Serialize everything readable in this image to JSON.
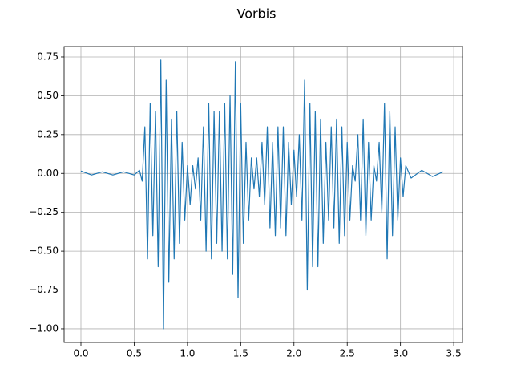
{
  "chart_data": {
    "type": "line",
    "title": "Vorbis",
    "x": [
      0,
      0.1,
      0.2,
      0.3,
      0.4,
      0.5,
      0.55,
      0.575,
      0.6,
      0.625,
      0.65,
      0.675,
      0.7,
      0.725,
      0.75,
      0.775,
      0.8,
      0.825,
      0.85,
      0.875,
      0.9,
      0.925,
      0.95,
      0.975,
      1.0,
      1.025,
      1.05,
      1.075,
      1.1,
      1.125,
      1.15,
      1.175,
      1.2,
      1.225,
      1.25,
      1.275,
      1.3,
      1.325,
      1.35,
      1.375,
      1.4,
      1.425,
      1.45,
      1.475,
      1.5,
      1.525,
      1.55,
      1.575,
      1.6,
      1.625,
      1.65,
      1.675,
      1.7,
      1.725,
      1.75,
      1.775,
      1.8,
      1.825,
      1.85,
      1.875,
      1.9,
      1.925,
      1.95,
      1.975,
      2.0,
      2.025,
      2.05,
      2.075,
      2.1,
      2.125,
      2.15,
      2.175,
      2.2,
      2.225,
      2.25,
      2.275,
      2.3,
      2.325,
      2.35,
      2.375,
      2.4,
      2.425,
      2.45,
      2.475,
      2.5,
      2.525,
      2.55,
      2.575,
      2.6,
      2.625,
      2.65,
      2.675,
      2.7,
      2.725,
      2.75,
      2.775,
      2.8,
      2.825,
      2.85,
      2.875,
      2.9,
      2.925,
      2.95,
      2.975,
      3.0,
      3.025,
      3.05,
      3.1,
      3.2,
      3.3,
      3.4
    ],
    "series": [
      {
        "color": "#1f77b4",
        "values": [
          0.015,
          -0.01,
          0.01,
          -0.01,
          0.01,
          -0.01,
          0.02,
          -0.05,
          0.3,
          -0.55,
          0.45,
          -0.4,
          0.4,
          -0.6,
          0.73,
          -1.0,
          0.6,
          -0.7,
          0.35,
          -0.55,
          0.4,
          -0.45,
          0.2,
          -0.3,
          0.05,
          -0.2,
          0.05,
          -0.1,
          0.1,
          -0.3,
          0.3,
          -0.5,
          0.45,
          -0.55,
          0.4,
          -0.45,
          0.4,
          -0.5,
          0.45,
          -0.55,
          0.5,
          -0.65,
          0.72,
          -0.8,
          0.45,
          -0.45,
          0.2,
          -0.3,
          0.1,
          -0.1,
          0.1,
          -0.15,
          0.2,
          -0.2,
          0.3,
          -0.35,
          0.2,
          -0.4,
          0.3,
          -0.35,
          0.3,
          -0.4,
          0.2,
          -0.2,
          0.15,
          -0.15,
          0.25,
          -0.3,
          0.6,
          -0.75,
          0.45,
          -0.6,
          0.4,
          -0.6,
          0.35,
          -0.45,
          0.2,
          -0.3,
          0.3,
          -0.35,
          0.35,
          -0.45,
          0.3,
          -0.4,
          0.2,
          -0.3,
          0.05,
          -0.05,
          0.25,
          -0.3,
          0.35,
          -0.4,
          0.2,
          -0.3,
          0.05,
          -0.05,
          0.2,
          -0.25,
          0.45,
          -0.55,
          0.4,
          -0.4,
          0.3,
          -0.3,
          0.1,
          -0.15,
          0.05,
          -0.03,
          0.02,
          -0.02,
          0.01
        ]
      }
    ],
    "xlim": [
      -0.158,
      3.582
    ],
    "ylim": [
      -1.088,
      0.817
    ],
    "xticks": [
      {
        "value": 0,
        "label": "0.0"
      },
      0.5,
      {
        "value": 1,
        "label": "1.0"
      },
      1.5,
      {
        "value": 2,
        "label": "2.0"
      },
      2.5,
      {
        "value": 3,
        "label": "3.0"
      },
      3.5
    ],
    "yticks": [
      {
        "value": -1,
        "label": "−1.00"
      },
      {
        "value": -0.75,
        "label": "−0.75"
      },
      {
        "value": -0.5,
        "label": "−0.50"
      },
      {
        "value": -0.25,
        "label": "−0.25"
      },
      {
        "value": 0,
        "label": "0.00"
      },
      0.25,
      {
        "value": 0.5,
        "label": "0.50"
      },
      0.75
    ],
    "grid": true
  }
}
